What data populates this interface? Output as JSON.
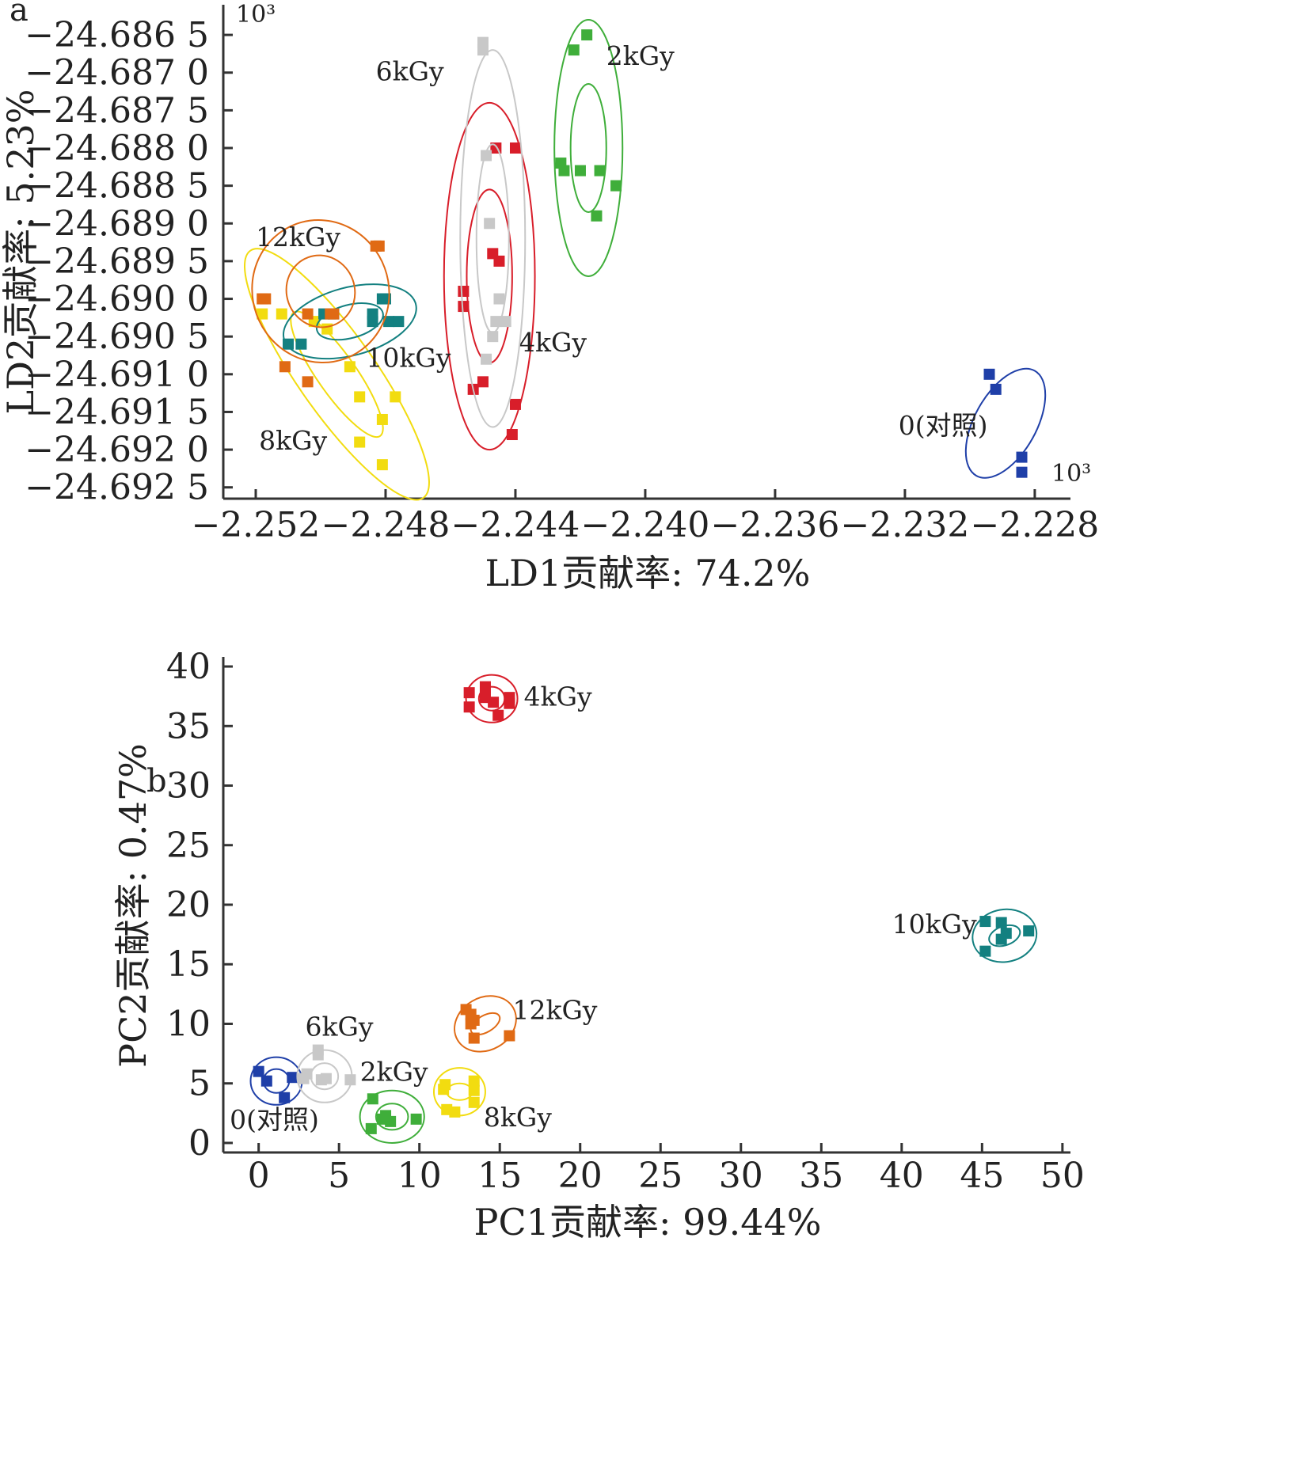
{
  "chart_data": [
    {
      "panel": "a",
      "type": "scatter",
      "xlabel": "LD1贡献率: 74.2%",
      "ylabel": "LD2贡献率: 5.23%",
      "x_exponent_label": "10³",
      "y_exponent_label": "10³",
      "xlim": [
        -2.253,
        -2.2269
      ],
      "ylim": [
        -24.69265,
        -24.6861
      ],
      "x_ticks": [
        -2.252,
        -2.248,
        -2.244,
        -2.24,
        -2.236,
        -2.232,
        -2.228
      ],
      "x_tick_labels": [
        "−2.252",
        "−2.248",
        "−2.244",
        "−2.240",
        "−2.236",
        "−2.232",
        "−2.228"
      ],
      "y_ticks": [
        -24.6865,
        -24.687,
        -24.6875,
        -24.688,
        -24.6885,
        -24.689,
        -24.6895,
        -24.69,
        -24.6905,
        -24.691,
        -24.6915,
        -24.692,
        -24.6925
      ],
      "y_tick_labels": [
        "−24.686 5",
        "−24.687 0",
        "−24.687 5",
        "−24.688 0",
        "−24.688 5",
        "−24.689 0",
        "−24.689 5",
        "−24.690 0",
        "−24.690 5",
        "−24.691 0",
        "−24.691 5",
        "−24.692 0",
        "−24.692 5"
      ],
      "grid": false,
      "series": [
        {
          "name": "0(对照)",
          "color": "#1f3fa8",
          "points": [
            [
              -2.2294,
              -24.691
            ],
            [
              -2.2292,
              -24.6912
            ],
            [
              -2.2284,
              -24.6921
            ],
            [
              -2.2284,
              -24.6923
            ]
          ],
          "ellipses": [
            {
              "cx": -2.2289,
              "cy": -24.69165,
              "rx": 0.00185,
              "ry": 0.00041,
              "angle_deg": -61
            }
          ],
          "label_pos": [
            -2.2322,
            -24.6918
          ]
        },
        {
          "name": "2kGy",
          "color": "#3fae3a",
          "points": [
            [
              -2.2418,
              -24.6865
            ],
            [
              -2.2422,
              -24.6867
            ],
            [
              -2.2426,
              -24.6882
            ],
            [
              -2.2425,
              -24.6883
            ],
            [
              -2.242,
              -24.6883
            ],
            [
              -2.2414,
              -24.6883
            ],
            [
              -2.2409,
              -24.6885
            ],
            [
              -2.2415,
              -24.6889
            ]
          ],
          "ellipses": [
            {
              "cx": -2.24175,
              "cy": -24.688,
              "rx": 0.00105,
              "ry": 0.0017,
              "angle_deg": 0
            },
            {
              "cx": -2.24175,
              "cy": -24.688,
              "rx": 0.00055,
              "ry": 0.00085,
              "angle_deg": 0
            }
          ],
          "label_pos": [
            -2.2412,
            -24.6869
          ]
        },
        {
          "name": "4kGy",
          "color": "#d81e2a",
          "points": [
            [
              -2.2446,
              -24.688
            ],
            [
              -2.244,
              -24.688
            ],
            [
              -2.2447,
              -24.6894
            ],
            [
              -2.2445,
              -24.6895
            ],
            [
              -2.2456,
              -24.6899
            ],
            [
              -2.2456,
              -24.6901
            ],
            [
              -2.245,
              -24.6911
            ],
            [
              -2.2453,
              -24.6912
            ],
            [
              -2.244,
              -24.6914
            ],
            [
              -2.2441,
              -24.6918
            ]
          ],
          "ellipses": [
            {
              "cx": -2.2448,
              "cy": -24.6897,
              "rx": 0.0014,
              "ry": 0.0023,
              "angle_deg": 0
            },
            {
              "cx": -2.2448,
              "cy": -24.6897,
              "rx": 0.0007,
              "ry": 0.00115,
              "angle_deg": 0
            }
          ],
          "label_pos": [
            -2.2439,
            -24.6907
          ]
        },
        {
          "name": "6kGy",
          "color": "#c8c8c8",
          "points": [
            [
              -2.245,
              -24.6866
            ],
            [
              -2.245,
              -24.6867
            ],
            [
              -2.2449,
              -24.6881
            ],
            [
              -2.2448,
              -24.689
            ],
            [
              -2.2445,
              -24.69
            ],
            [
              -2.2446,
              -24.6903
            ],
            [
              -2.2443,
              -24.6903
            ],
            [
              -2.2447,
              -24.6905
            ],
            [
              -2.2449,
              -24.6908
            ]
          ],
          "ellipses": [
            {
              "cx": -2.2447,
              "cy": -24.6892,
              "rx": 0.001,
              "ry": 0.0025,
              "angle_deg": 0
            },
            {
              "cx": -2.2447,
              "cy": -24.6892,
              "rx": 0.0005,
              "ry": 0.00125,
              "angle_deg": 0
            }
          ],
          "label_pos": [
            -2.2483,
            -24.6871
          ]
        },
        {
          "name": "8kGy",
          "color": "#f2dc10",
          "points": [
            [
              -2.2518,
              -24.6902
            ],
            [
              -2.2512,
              -24.6902
            ],
            [
              -2.2502,
              -24.6903
            ],
            [
              -2.2498,
              -24.6904
            ],
            [
              -2.2491,
              -24.6909
            ],
            [
              -2.2488,
              -24.6913
            ],
            [
              -2.2477,
              -24.6913
            ],
            [
              -2.2481,
              -24.6916
            ],
            [
              -2.2488,
              -24.6919
            ],
            [
              -2.2481,
              -24.6922
            ]
          ],
          "ellipses": [
            {
              "cx": -2.2495,
              "cy": -24.691,
              "rx": 0.0012,
              "ry": 0.002,
              "angle_deg": -35
            },
            {
              "cx": -2.2495,
              "cy": -24.691,
              "rx": 0.0006,
              "ry": 0.001,
              "angle_deg": -35
            }
          ],
          "label_pos": [
            -2.2519,
            -24.692
          ]
        },
        {
          "name": "10kGy",
          "color": "#138080",
          "points": [
            [
              -2.248,
              -24.69
            ],
            [
              -2.2481,
              -24.69
            ],
            [
              -2.2484,
              -24.6903
            ],
            [
              -2.2484,
              -24.6902
            ],
            [
              -2.2479,
              -24.6903
            ],
            [
              -2.2476,
              -24.6903
            ],
            [
              -2.251,
              -24.6906
            ],
            [
              -2.2506,
              -24.6906
            ],
            [
              -2.2496,
              -24.6902
            ],
            [
              -2.2499,
              -24.6902
            ]
          ],
          "ellipses": [
            {
              "cx": -2.2491,
              "cy": -24.6903,
              "rx": 0.0021,
              "ry": 0.00045,
              "angle_deg": -15
            },
            {
              "cx": -2.2491,
              "cy": -24.6903,
              "rx": 0.00105,
              "ry": 0.00022,
              "angle_deg": -15
            }
          ],
          "label_pos": [
            -2.2486,
            -24.6909
          ]
        },
        {
          "name": "12kGy",
          "color": "#e06a14",
          "points": [
            [
              -2.2483,
              -24.6893
            ],
            [
              -2.2482,
              -24.6893
            ],
            [
              -2.2518,
              -24.69
            ],
            [
              -2.2517,
              -24.69
            ],
            [
              -2.2504,
              -24.6902
            ],
            [
              -2.2497,
              -24.6902
            ],
            [
              -2.2496,
              -24.6902
            ],
            [
              -2.2511,
              -24.6909
            ],
            [
              -2.2504,
              -24.6911
            ]
          ],
          "ellipses": [
            {
              "cx": -2.25,
              "cy": -24.6899,
              "rx": 0.0021,
              "ry": 0.00095,
              "angle_deg": -20
            },
            {
              "cx": -2.25,
              "cy": -24.6899,
              "rx": 0.00105,
              "ry": 0.00048,
              "angle_deg": -20
            }
          ],
          "label_pos": [
            -2.252,
            -24.6893
          ]
        }
      ]
    },
    {
      "panel": "b",
      "type": "scatter",
      "xlabel": "PC1贡献率: 99.44%",
      "ylabel": "PC2贡献率: 0.47%",
      "xlim": [
        -2.2,
        50.5
      ],
      "ylim": [
        -0.8,
        40.8
      ],
      "x_ticks": [
        0,
        5,
        10,
        15,
        20,
        25,
        30,
        35,
        40,
        45,
        50
      ],
      "x_tick_labels": [
        "0",
        "5",
        "10",
        "15",
        "20",
        "25",
        "30",
        "35",
        "40",
        "45",
        "50"
      ],
      "y_ticks": [
        0,
        5,
        10,
        15,
        20,
        25,
        30,
        35,
        40
      ],
      "y_tick_labels": [
        "0",
        "5",
        "10",
        "15",
        "20",
        "25",
        "30",
        "35",
        "40"
      ],
      "grid": false,
      "series": [
        {
          "name": "0(对照)",
          "color": "#1f3fa8",
          "points": [
            [
              0.0,
              6.0
            ],
            [
              2.1,
              5.5
            ],
            [
              1.6,
              3.8
            ],
            [
              0.5,
              5.2
            ]
          ],
          "ellipses": [
            {
              "cx": 1.1,
              "cy": 5.2,
              "rx": 1.6,
              "ry": 2.0,
              "angle_deg": 0
            },
            {
              "cx": 1.1,
              "cy": 5.2,
              "rx": 0.8,
              "ry": 1.0,
              "angle_deg": 0
            }
          ],
          "label_pos": [
            -1.8,
            1.2
          ]
        },
        {
          "name": "2kGy",
          "color": "#3fae3a",
          "points": [
            [
              7.1,
              3.7
            ],
            [
              7.0,
              1.2
            ],
            [
              7.7,
              2.0
            ],
            [
              8.2,
              1.8
            ],
            [
              9.8,
              2.0
            ],
            [
              7.9,
              2.3
            ]
          ],
          "ellipses": [
            {
              "cx": 8.3,
              "cy": 2.2,
              "rx": 2.0,
              "ry": 2.2,
              "angle_deg": 0
            },
            {
              "cx": 8.3,
              "cy": 2.2,
              "rx": 1.0,
              "ry": 1.1,
              "angle_deg": 0
            }
          ],
          "label_pos": [
            6.3,
            5.2
          ]
        },
        {
          "name": "4kGy",
          "color": "#d81e2a",
          "points": [
            [
              13.1,
              37.8
            ],
            [
              14.1,
              38.3
            ],
            [
              14.1,
              37.4
            ],
            [
              14.6,
              37.0
            ],
            [
              15.6,
              37.4
            ],
            [
              15.6,
              36.9
            ],
            [
              13.1,
              36.6
            ],
            [
              14.9,
              35.9
            ]
          ],
          "ellipses": [
            {
              "cx": 14.5,
              "cy": 37.3,
              "rx": 1.6,
              "ry": 2.0,
              "angle_deg": 0
            },
            {
              "cx": 14.5,
              "cy": 37.3,
              "rx": 0.8,
              "ry": 1.0,
              "angle_deg": 0
            }
          ],
          "label_pos": [
            16.5,
            36.7
          ]
        },
        {
          "name": "6kGy",
          "color": "#c8c8c8",
          "points": [
            [
              3.7,
              7.8
            ],
            [
              3.7,
              7.4
            ],
            [
              3.0,
              5.8
            ],
            [
              3.9,
              5.3
            ],
            [
              4.2,
              5.4
            ],
            [
              5.7,
              5.3
            ],
            [
              2.8,
              5.4
            ]
          ],
          "ellipses": [
            {
              "cx": 4.1,
              "cy": 5.6,
              "rx": 1.7,
              "ry": 2.2,
              "angle_deg": 0
            },
            {
              "cx": 4.1,
              "cy": 5.6,
              "rx": 0.85,
              "ry": 1.1,
              "angle_deg": 0
            }
          ],
          "label_pos": [
            2.9,
            9.0
          ]
        },
        {
          "name": "8kGy",
          "color": "#f2dc10",
          "points": [
            [
              11.5,
              4.5
            ],
            [
              11.6,
              4.9
            ],
            [
              13.4,
              5.2
            ],
            [
              13.4,
              4.4
            ],
            [
              13.4,
              3.4
            ],
            [
              12.2,
              2.6
            ],
            [
              11.7,
              2.8
            ]
          ],
          "ellipses": [
            {
              "cx": 12.5,
              "cy": 4.3,
              "rx": 1.6,
              "ry": 2.0,
              "angle_deg": 0
            },
            {
              "cx": 12.5,
              "cy": 4.3,
              "rx": 0.8,
              "ry": 0.7,
              "angle_deg": 0
            }
          ],
          "label_pos": [
            14.0,
            1.4
          ]
        },
        {
          "name": "10kGy",
          "color": "#138080",
          "points": [
            [
              45.2,
              18.6
            ],
            [
              46.2,
              18.5
            ],
            [
              47.9,
              17.8
            ],
            [
              46.5,
              17.6
            ],
            [
              46.2,
              17.1
            ],
            [
              45.2,
              16.1
            ]
          ],
          "ellipses": [
            {
              "cx": 46.4,
              "cy": 17.4,
              "rx": 2.0,
              "ry": 2.2,
              "angle_deg": -10
            },
            {
              "cx": 46.4,
              "cy": 17.4,
              "rx": 1.0,
              "ry": 0.8,
              "angle_deg": -20
            }
          ],
          "label_pos": [
            39.4,
            17.6
          ]
        },
        {
          "name": "12kGy",
          "color": "#e06a14",
          "points": [
            [
              12.9,
              11.2
            ],
            [
              13.2,
              10.8
            ],
            [
              13.4,
              10.3
            ],
            [
              13.2,
              10.0
            ],
            [
              15.6,
              9.0
            ],
            [
              13.4,
              8.8
            ]
          ],
          "ellipses": [
            {
              "cx": 14.1,
              "cy": 10.0,
              "rx": 2.0,
              "ry": 2.2,
              "angle_deg": -30
            },
            {
              "cx": 14.1,
              "cy": 10.0,
              "rx": 1.0,
              "ry": 0.7,
              "angle_deg": -30
            }
          ],
          "label_pos": [
            15.8,
            10.4
          ]
        }
      ]
    }
  ],
  "panel_labels": {
    "a": "a",
    "b": "b"
  }
}
